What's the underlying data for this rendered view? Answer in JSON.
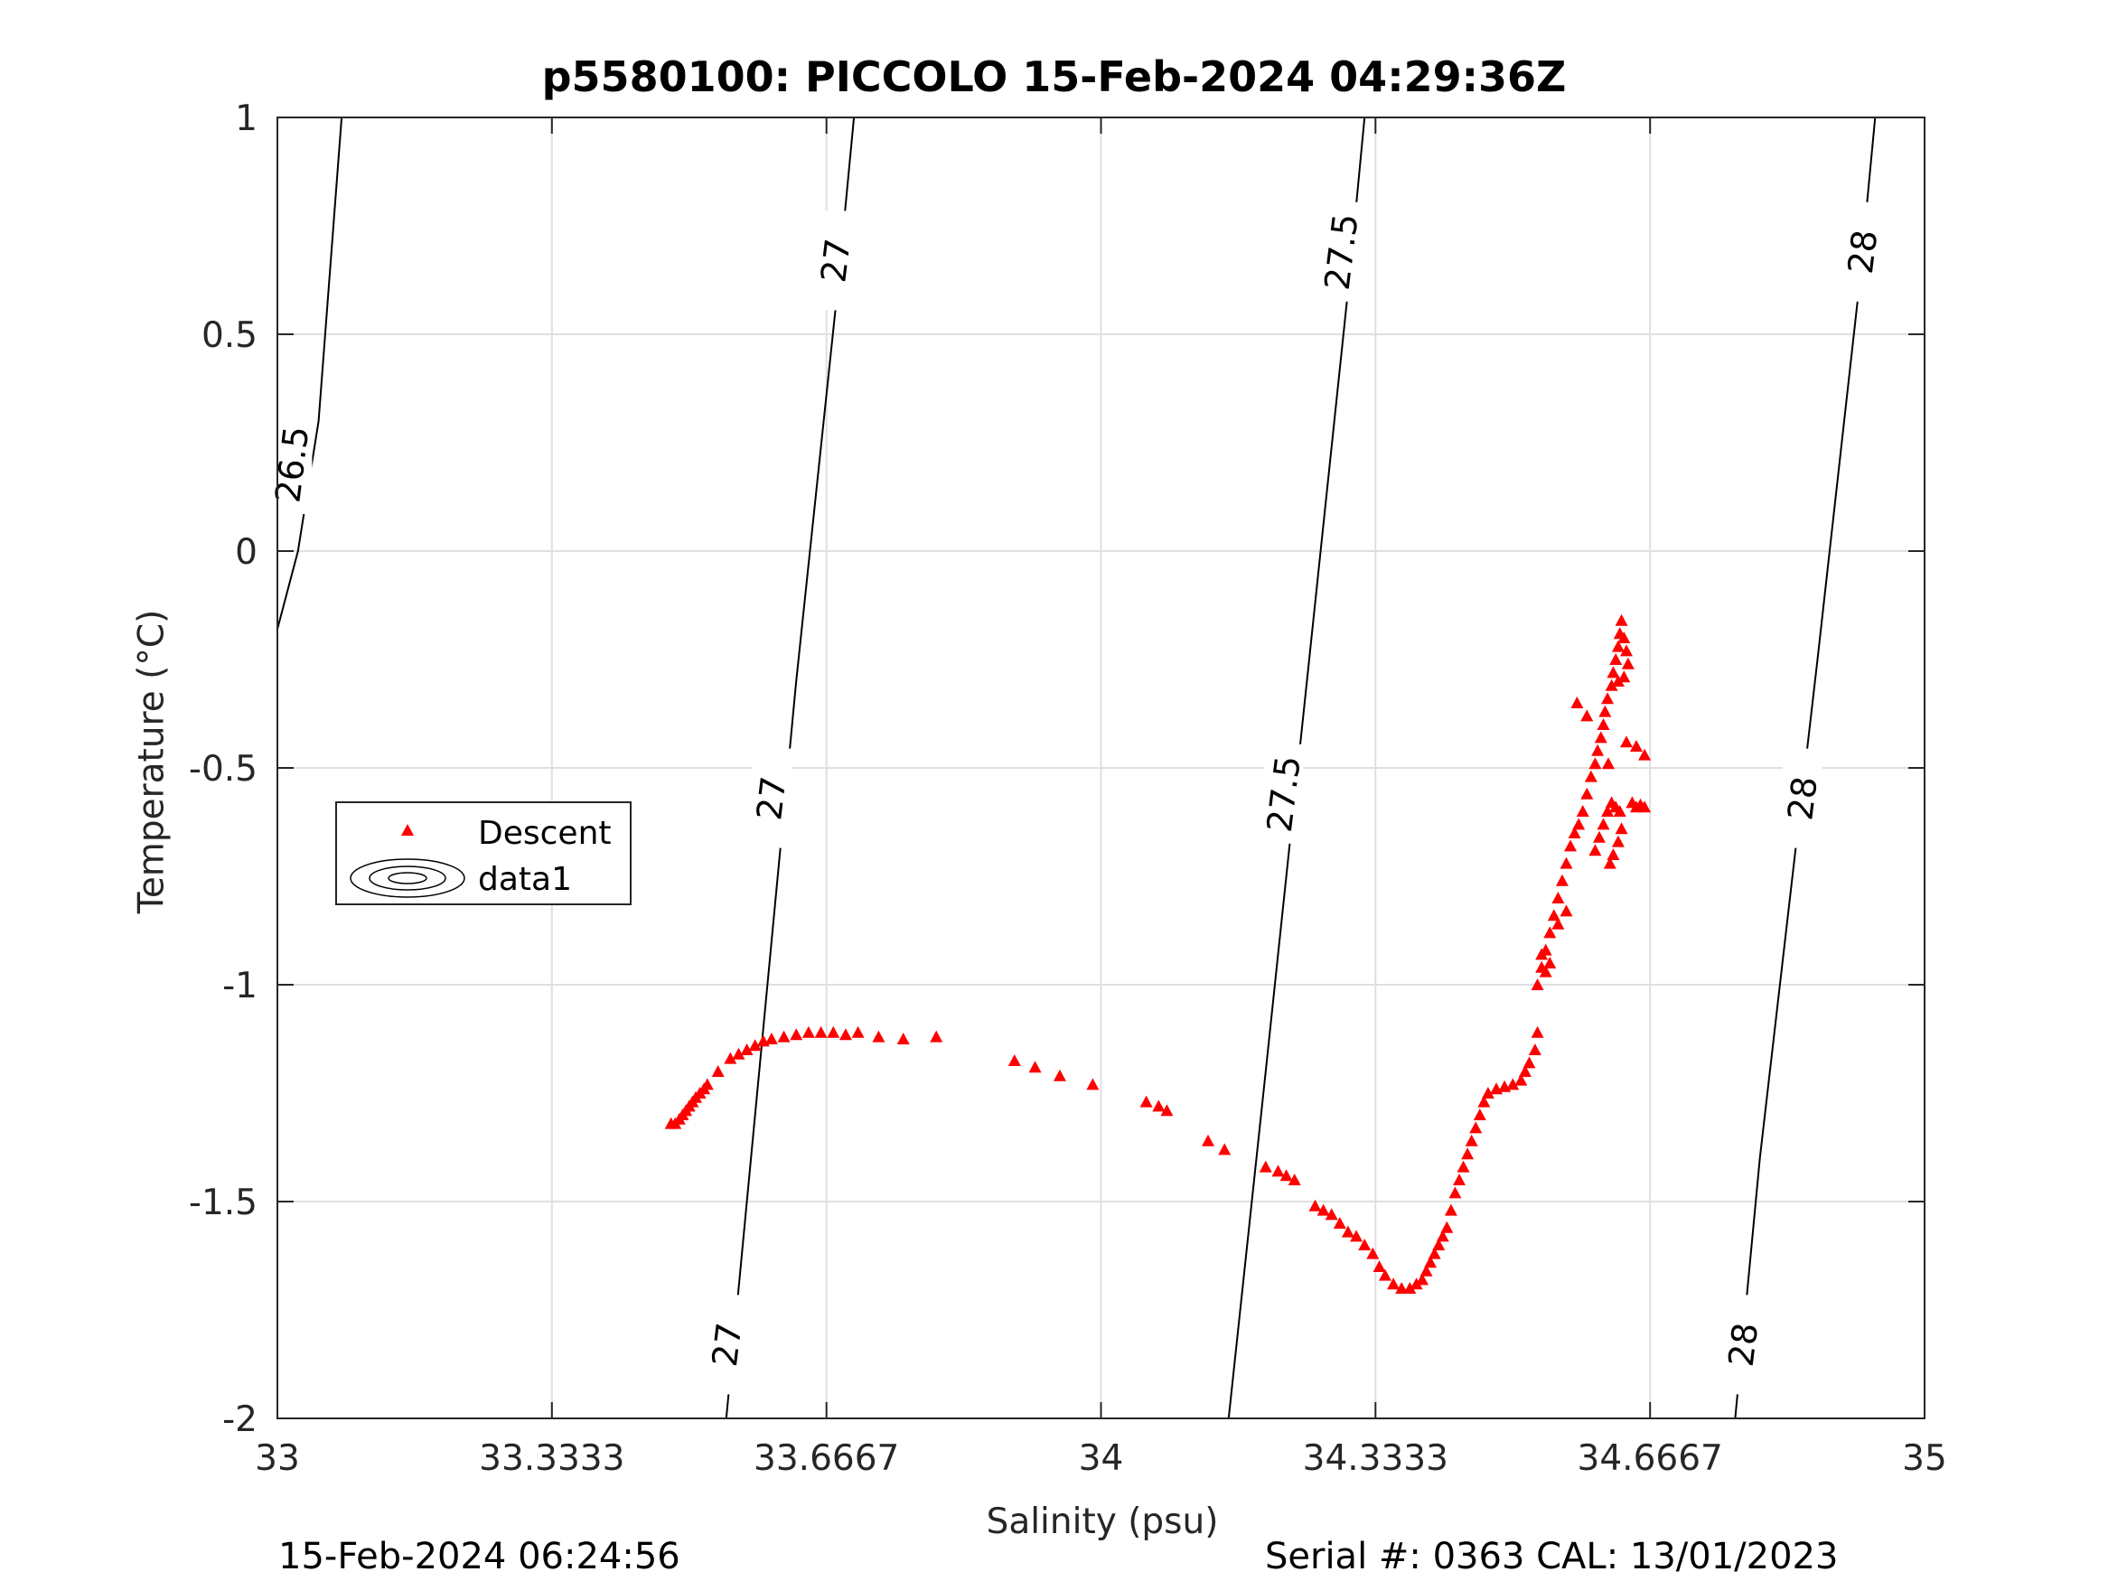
{
  "title": "p5580100: PICCOLO 15-Feb-2024 04:29:36Z",
  "footer": {
    "left": "15-Feb-2024 06:24:56",
    "right": "Serial #: 0363  CAL: 13/01/2023"
  },
  "colors": {
    "marker": "#ff0000",
    "contour": "#000000",
    "grid": "#dfdfdf",
    "axis": "#262626"
  },
  "legend": {
    "placement": "left-middle",
    "items": [
      {
        "label": "Descent",
        "icon": "red-triangle-marker"
      },
      {
        "label": "data1",
        "icon": "contour-ellipses"
      }
    ]
  },
  "chart_data": {
    "type": "scatter",
    "xlabel": "Salinity (psu)",
    "ylabel": "Temperature (°C)",
    "xlim": [
      33,
      35
    ],
    "ylim": [
      -2,
      1
    ],
    "xticks": [
      33,
      33.3333,
      33.6667,
      34,
      34.3333,
      34.6667,
      35
    ],
    "xtick_labels": [
      "33",
      "33.3333",
      "33.6667",
      "34",
      "34.3333",
      "34.6667",
      "35"
    ],
    "yticks": [
      -2,
      -1.5,
      -1,
      -0.5,
      0,
      0.5,
      1
    ],
    "ytick_labels": [
      "-2",
      "-1.5",
      "-1",
      "-0.5",
      "0",
      "0.5",
      "1"
    ],
    "grid": true,
    "contours": [
      {
        "level": "26.5",
        "line": [
          [
            33.0,
            -0.18
          ],
          [
            33.025,
            0.0
          ],
          [
            33.05,
            0.3
          ],
          [
            33.078,
            1.0
          ]
        ],
        "labels": [
          {
            "s": 33.018,
            "t": 0.2
          }
        ]
      },
      {
        "level": "27",
        "line": [
          [
            33.545,
            -2.0
          ],
          [
            33.58,
            -1.3
          ],
          [
            33.63,
            -0.3
          ],
          [
            33.68,
            0.6
          ],
          [
            33.7,
            1.0
          ]
        ],
        "labels": [
          {
            "s": 33.546,
            "t": -1.83
          },
          {
            "s": 33.6,
            "t": -0.57
          },
          {
            "s": 33.678,
            "t": 0.67
          }
        ]
      },
      {
        "level": "27.5",
        "line": [
          [
            34.155,
            -2.0
          ],
          [
            34.2,
            -1.2
          ],
          [
            34.25,
            -0.3
          ],
          [
            34.3,
            0.6
          ],
          [
            34.32,
            1.0
          ]
        ],
        "labels": [
          {
            "s": 34.222,
            "t": -0.56
          },
          {
            "s": 34.292,
            "t": 0.69
          }
        ]
      },
      {
        "level": "28",
        "line": [
          [
            34.77,
            -2.0
          ],
          [
            34.8,
            -1.4
          ],
          [
            34.87,
            -0.25
          ],
          [
            34.92,
            0.6
          ],
          [
            34.94,
            1.0
          ]
        ],
        "labels": [
          {
            "s": 34.78,
            "t": -1.83
          },
          {
            "s": 34.852,
            "t": -0.57
          },
          {
            "s": 34.925,
            "t": 0.69
          }
        ]
      }
    ],
    "series": [
      {
        "name": "Descent",
        "marker": "triangle",
        "color": "#ff0000",
        "points": [
          [
            33.478,
            -1.32
          ],
          [
            33.483,
            -1.32
          ],
          [
            33.488,
            -1.31
          ],
          [
            33.492,
            -1.3
          ],
          [
            33.496,
            -1.29
          ],
          [
            33.5,
            -1.28
          ],
          [
            33.504,
            -1.27
          ],
          [
            33.508,
            -1.26
          ],
          [
            33.513,
            -1.25
          ],
          [
            33.518,
            -1.24
          ],
          [
            33.522,
            -1.23
          ],
          [
            33.535,
            -1.2
          ],
          [
            33.55,
            -1.17
          ],
          [
            33.56,
            -1.16
          ],
          [
            33.57,
            -1.15
          ],
          [
            33.58,
            -1.14
          ],
          [
            33.59,
            -1.13
          ],
          [
            33.6,
            -1.125
          ],
          [
            33.615,
            -1.12
          ],
          [
            33.63,
            -1.115
          ],
          [
            33.645,
            -1.11
          ],
          [
            33.66,
            -1.11
          ],
          [
            33.675,
            -1.11
          ],
          [
            33.69,
            -1.115
          ],
          [
            33.705,
            -1.11
          ],
          [
            33.73,
            -1.12
          ],
          [
            33.76,
            -1.125
          ],
          [
            33.8,
            -1.12
          ],
          [
            33.895,
            -1.175
          ],
          [
            33.92,
            -1.19
          ],
          [
            33.95,
            -1.21
          ],
          [
            33.99,
            -1.23
          ],
          [
            34.055,
            -1.27
          ],
          [
            34.07,
            -1.28
          ],
          [
            34.08,
            -1.29
          ],
          [
            34.13,
            -1.36
          ],
          [
            34.15,
            -1.38
          ],
          [
            34.2,
            -1.42
          ],
          [
            34.215,
            -1.43
          ],
          [
            34.225,
            -1.44
          ],
          [
            34.235,
            -1.45
          ],
          [
            34.26,
            -1.51
          ],
          [
            34.27,
            -1.52
          ],
          [
            34.28,
            -1.53
          ],
          [
            34.29,
            -1.55
          ],
          [
            34.3,
            -1.57
          ],
          [
            34.31,
            -1.58
          ],
          [
            34.32,
            -1.6
          ],
          [
            34.33,
            -1.62
          ],
          [
            34.338,
            -1.65
          ],
          [
            34.345,
            -1.67
          ],
          [
            34.355,
            -1.69
          ],
          [
            34.365,
            -1.7
          ],
          [
            34.375,
            -1.7
          ],
          [
            34.383,
            -1.69
          ],
          [
            34.39,
            -1.68
          ],
          [
            34.395,
            -1.66
          ],
          [
            34.4,
            -1.64
          ],
          [
            34.405,
            -1.62
          ],
          [
            34.41,
            -1.6
          ],
          [
            34.415,
            -1.58
          ],
          [
            34.42,
            -1.56
          ],
          [
            34.425,
            -1.52
          ],
          [
            34.43,
            -1.48
          ],
          [
            34.435,
            -1.45
          ],
          [
            34.44,
            -1.42
          ],
          [
            34.445,
            -1.39
          ],
          [
            34.45,
            -1.36
          ],
          [
            34.455,
            -1.33
          ],
          [
            34.46,
            -1.3
          ],
          [
            34.465,
            -1.27
          ],
          [
            34.47,
            -1.25
          ],
          [
            34.48,
            -1.24
          ],
          [
            34.49,
            -1.235
          ],
          [
            34.5,
            -1.23
          ],
          [
            34.51,
            -1.22
          ],
          [
            34.515,
            -1.2
          ],
          [
            34.52,
            -1.18
          ],
          [
            34.527,
            -1.15
          ],
          [
            34.53,
            -1.11
          ],
          [
            34.53,
            -1.0
          ],
          [
            34.535,
            -0.96
          ],
          [
            34.54,
            -0.92
          ],
          [
            34.545,
            -0.88
          ],
          [
            34.55,
            -0.84
          ],
          [
            34.555,
            -0.8
          ],
          [
            34.56,
            -0.76
          ],
          [
            34.565,
            -0.72
          ],
          [
            34.57,
            -0.68
          ],
          [
            34.575,
            -0.65
          ],
          [
            34.58,
            -0.63
          ],
          [
            34.585,
            -0.6
          ],
          [
            34.59,
            -0.56
          ],
          [
            34.595,
            -0.52
          ],
          [
            34.6,
            -0.49
          ],
          [
            34.603,
            -0.46
          ],
          [
            34.607,
            -0.43
          ],
          [
            34.61,
            -0.4
          ],
          [
            34.612,
            -0.37
          ],
          [
            34.615,
            -0.34
          ],
          [
            34.62,
            -0.31
          ],
          [
            34.622,
            -0.28
          ],
          [
            34.625,
            -0.25
          ],
          [
            34.628,
            -0.22
          ],
          [
            34.63,
            -0.19
          ],
          [
            34.632,
            -0.16
          ],
          [
            34.635,
            -0.2
          ],
          [
            34.638,
            -0.23
          ],
          [
            34.64,
            -0.26
          ],
          [
            34.635,
            -0.29
          ],
          [
            34.628,
            -0.3
          ],
          [
            34.6,
            -0.69
          ],
          [
            34.605,
            -0.66
          ],
          [
            34.61,
            -0.63
          ],
          [
            34.615,
            -0.6
          ],
          [
            34.62,
            -0.58
          ],
          [
            34.625,
            -0.59
          ],
          [
            34.63,
            -0.6
          ],
          [
            34.632,
            -0.64
          ],
          [
            34.628,
            -0.67
          ],
          [
            34.622,
            -0.7
          ],
          [
            34.618,
            -0.72
          ],
          [
            34.645,
            -0.58
          ],
          [
            34.65,
            -0.59
          ],
          [
            34.655,
            -0.585
          ],
          [
            34.66,
            -0.59
          ],
          [
            34.638,
            -0.44
          ],
          [
            34.65,
            -0.45
          ],
          [
            34.66,
            -0.47
          ],
          [
            34.616,
            -0.49
          ],
          [
            34.578,
            -0.35
          ],
          [
            34.59,
            -0.38
          ],
          [
            34.565,
            -0.83
          ],
          [
            34.555,
            -0.86
          ],
          [
            34.545,
            -0.95
          ],
          [
            34.54,
            -0.97
          ],
          [
            34.535,
            -0.93
          ]
        ]
      }
    ]
  }
}
